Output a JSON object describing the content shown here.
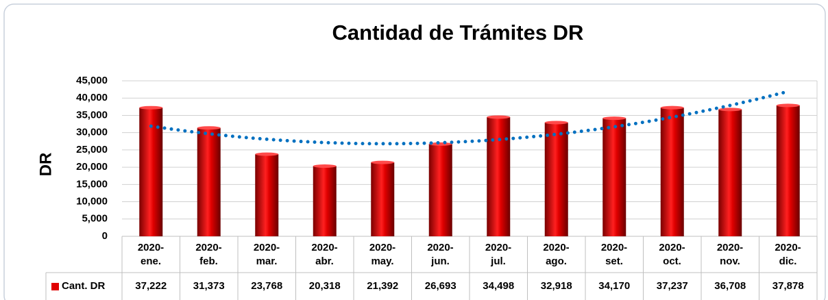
{
  "chart_data": {
    "type": "bar",
    "title": "Cantidad de Trámites DR",
    "y_label": "DR",
    "categories": [
      "2020-ene.",
      "2020-feb.",
      "2020-mar.",
      "2020-abr.",
      "2020-may.",
      "2020-jun.",
      "2020-jul.",
      "2020-ago.",
      "2020-set.",
      "2020-oct.",
      "2020-nov.",
      "2020-dic."
    ],
    "series": [
      {
        "name": "Cant. DR",
        "color": "#e00000",
        "values": [
          37222,
          31373,
          23768,
          20318,
          21392,
          26693,
          34498,
          32918,
          34170,
          37237,
          36708,
          37878
        ],
        "value_labels": [
          "37,222",
          "31,373",
          "23,768",
          "20,318",
          "21,392",
          "26,693",
          "34,498",
          "32,918",
          "34,170",
          "37,237",
          "36,708",
          "37,878"
        ]
      }
    ],
    "ylim": [
      0,
      45000
    ],
    "yticks": [
      0,
      {
        "value": 5000,
        "label": "5,000"
      },
      {
        "value": 10000,
        "label": "10,000"
      },
      {
        "value": 15000,
        "label": "15,000"
      },
      {
        "value": 20000,
        "label": "20,000"
      },
      {
        "value": 25000,
        "label": "25,000"
      },
      {
        "value": 30000,
        "label": "30,000"
      },
      {
        "value": 35000,
        "label": "35,000"
      },
      {
        "value": 40000,
        "label": "40,000"
      },
      {
        "value": 45000,
        "label": "45,000"
      }
    ],
    "grid": true,
    "trendline": {
      "order": 2,
      "color": "#0070c0"
    }
  }
}
